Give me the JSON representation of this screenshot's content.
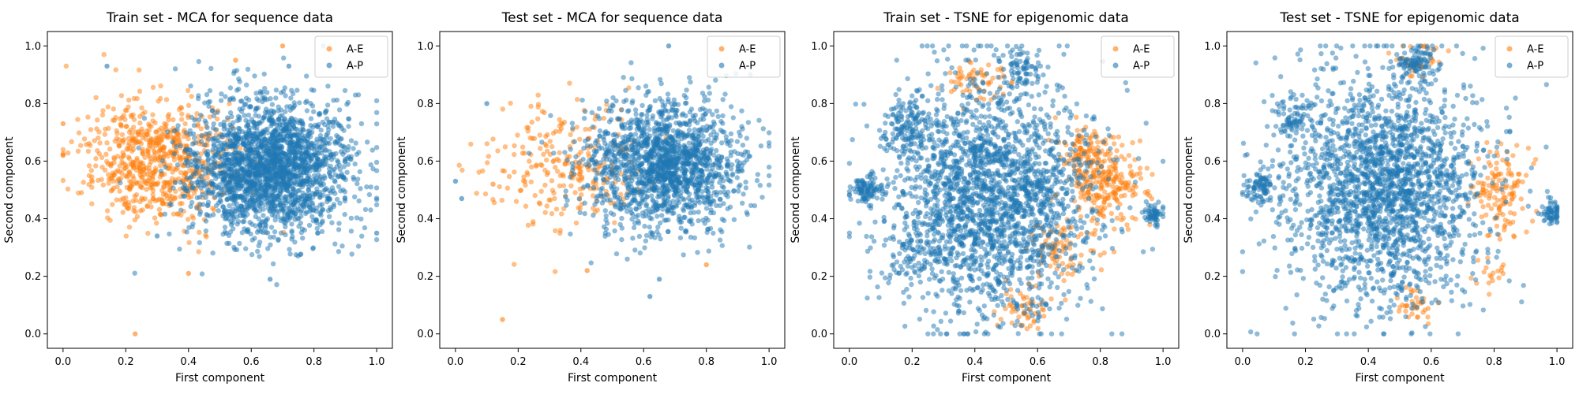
{
  "chart_data": [
    {
      "type": "scatter",
      "title": "Train set - MCA for sequence data",
      "xlabel": "First component",
      "ylabel": "Second component",
      "xlim": [
        -0.05,
        1.05
      ],
      "ylim": [
        -0.05,
        1.05
      ],
      "xticks": [
        "0.0",
        "0.2",
        "0.4",
        "0.6",
        "0.8",
        "1.0"
      ],
      "yticks": [
        "0.0",
        "0.2",
        "0.4",
        "0.6",
        "0.8",
        "1.0"
      ],
      "legend_position": "top-right",
      "series": [
        {
          "name": "A-E",
          "color": "#ff7f0e",
          "n_points": 700,
          "clusters": [
            {
              "cx": 0.3,
              "cy": 0.6,
              "sx": 0.12,
              "sy": 0.1,
              "w": 1.0
            }
          ],
          "outliers": [
            [
              0.23,
              0.0
            ],
            [
              0.0,
              0.73
            ],
            [
              0.7,
              1.0
            ],
            [
              0.55,
              0.95
            ],
            [
              0.4,
              0.21
            ]
          ]
        },
        {
          "name": "A-P",
          "color": "#1f77b4",
          "n_points": 2200,
          "clusters": [
            {
              "cx": 0.66,
              "cy": 0.58,
              "sx": 0.13,
              "sy": 0.12,
              "w": 1.0
            }
          ],
          "outliers": [
            [
              0.14,
              0.93
            ],
            [
              1.0,
              0.35
            ],
            [
              0.72,
              0.93
            ],
            [
              0.66,
              0.19
            ],
            [
              0.3,
              0.34
            ]
          ]
        }
      ]
    },
    {
      "type": "scatter",
      "title": "Test set - MCA for sequence data",
      "xlabel": "First component",
      "ylabel": "Second component",
      "xlim": [
        -0.05,
        1.05
      ],
      "ylim": [
        -0.05,
        1.05
      ],
      "xticks": [
        "0.0",
        "0.2",
        "0.4",
        "0.6",
        "0.8",
        "1.0"
      ],
      "yticks": [
        "0.0",
        "0.2",
        "0.4",
        "0.6",
        "0.8",
        "1.0"
      ],
      "legend_position": "top-right",
      "series": [
        {
          "name": "A-E",
          "color": "#ff7f0e",
          "n_points": 260,
          "clusters": [
            {
              "cx": 0.36,
              "cy": 0.58,
              "sx": 0.13,
              "sy": 0.11,
              "w": 1.0
            }
          ],
          "outliers": [
            [
              0.15,
              0.05
            ],
            [
              0.42,
              0.22
            ],
            [
              0.8,
              0.24
            ],
            [
              0.12,
              0.52
            ]
          ]
        },
        {
          "name": "A-P",
          "color": "#1f77b4",
          "n_points": 1600,
          "clusters": [
            {
              "cx": 0.67,
              "cy": 0.58,
              "sx": 0.12,
              "sy": 0.11,
              "w": 1.0
            }
          ],
          "outliers": [
            [
              0.0,
              0.53
            ],
            [
              0.02,
              0.47
            ],
            [
              0.1,
              0.8
            ],
            [
              0.68,
              1.0
            ],
            [
              0.62,
              0.13
            ],
            [
              0.65,
              0.19
            ]
          ]
        }
      ]
    },
    {
      "type": "scatter",
      "title": "Train set - TSNE for epigenomic data",
      "xlabel": "First component",
      "ylabel": "Second component",
      "xlim": [
        -0.05,
        1.05
      ],
      "ylim": [
        -0.05,
        1.05
      ],
      "xticks": [
        "0.0",
        "0.2",
        "0.4",
        "0.6",
        "0.8",
        "1.0"
      ],
      "yticks": [
        "0.0",
        "0.2",
        "0.4",
        "0.6",
        "0.8",
        "1.0"
      ],
      "legend_position": "top-right",
      "series": [
        {
          "name": "A-E",
          "color": "#ff7f0e",
          "n_points": 520,
          "clusters": [
            {
              "cx": 0.82,
              "cy": 0.52,
              "sx": 0.06,
              "sy": 0.07,
              "w": 0.45
            },
            {
              "cx": 0.68,
              "cy": 0.3,
              "sx": 0.05,
              "sy": 0.05,
              "w": 0.15
            },
            {
              "cx": 0.4,
              "cy": 0.88,
              "sx": 0.05,
              "sy": 0.04,
              "w": 0.12
            },
            {
              "cx": 0.56,
              "cy": 0.1,
              "sx": 0.04,
              "sy": 0.04,
              "w": 0.1
            },
            {
              "cx": 0.75,
              "cy": 0.64,
              "sx": 0.04,
              "sy": 0.04,
              "w": 0.18
            }
          ],
          "outliers": []
        },
        {
          "name": "A-P",
          "color": "#1f77b4",
          "n_points": 2600,
          "clusters": [
            {
              "cx": 0.45,
              "cy": 0.48,
              "sx": 0.16,
              "sy": 0.2,
              "w": 0.86
            },
            {
              "cx": 0.05,
              "cy": 0.5,
              "sx": 0.025,
              "sy": 0.025,
              "w": 0.03
            },
            {
              "cx": 0.18,
              "cy": 0.72,
              "sx": 0.04,
              "sy": 0.05,
              "w": 0.04
            },
            {
              "cx": 0.55,
              "cy": 0.93,
              "sx": 0.03,
              "sy": 0.03,
              "w": 0.03
            },
            {
              "cx": 0.97,
              "cy": 0.42,
              "sx": 0.02,
              "sy": 0.02,
              "w": 0.02
            },
            {
              "cx": 0.2,
              "cy": 0.28,
              "sx": 0.04,
              "sy": 0.05,
              "w": 0.02
            }
          ],
          "outliers": []
        }
      ]
    },
    {
      "type": "scatter",
      "title": "Test set - TSNE for epigenomic data",
      "xlabel": "First component",
      "ylabel": "Second component",
      "xlim": [
        -0.05,
        1.05
      ],
      "ylim": [
        -0.05,
        1.05
      ],
      "xticks": [
        "0.0",
        "0.2",
        "0.4",
        "0.6",
        "0.8",
        "1.0"
      ],
      "yticks": [
        "0.0",
        "0.2",
        "0.4",
        "0.6",
        "0.8",
        "1.0"
      ],
      "legend_position": "top-right",
      "series": [
        {
          "name": "A-E",
          "color": "#ff7f0e",
          "n_points": 220,
          "clusters": [
            {
              "cx": 0.82,
              "cy": 0.5,
              "sx": 0.05,
              "sy": 0.07,
              "w": 0.6
            },
            {
              "cx": 0.55,
              "cy": 0.95,
              "sx": 0.04,
              "sy": 0.03,
              "w": 0.15
            },
            {
              "cx": 0.8,
              "cy": 0.22,
              "sx": 0.03,
              "sy": 0.04,
              "w": 0.1
            },
            {
              "cx": 0.56,
              "cy": 0.1,
              "sx": 0.03,
              "sy": 0.03,
              "w": 0.15
            }
          ],
          "outliers": []
        },
        {
          "name": "A-P",
          "color": "#1f77b4",
          "n_points": 2400,
          "clusters": [
            {
              "cx": 0.45,
              "cy": 0.5,
              "sx": 0.16,
              "sy": 0.2,
              "w": 0.88
            },
            {
              "cx": 0.05,
              "cy": 0.51,
              "sx": 0.025,
              "sy": 0.03,
              "w": 0.03
            },
            {
              "cx": 0.16,
              "cy": 0.74,
              "sx": 0.03,
              "sy": 0.04,
              "w": 0.03
            },
            {
              "cx": 0.55,
              "cy": 0.94,
              "sx": 0.03,
              "sy": 0.03,
              "w": 0.03
            },
            {
              "cx": 0.98,
              "cy": 0.42,
              "sx": 0.02,
              "sy": 0.02,
              "w": 0.03
            }
          ],
          "outliers": []
        }
      ]
    }
  ]
}
